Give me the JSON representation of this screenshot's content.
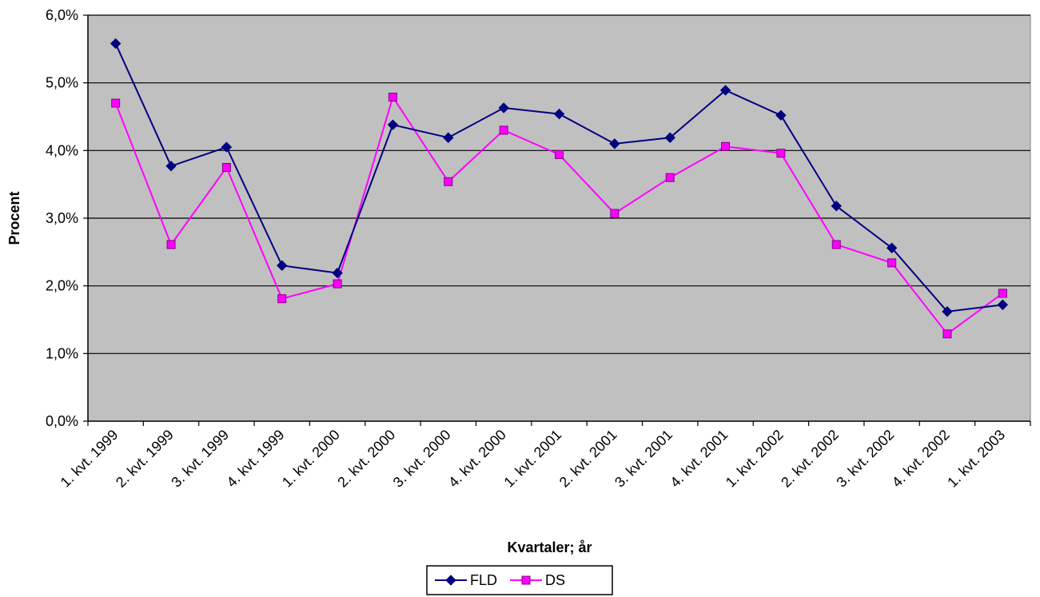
{
  "chart_data": {
    "type": "line",
    "title": "",
    "xlabel": "Kvartaler; år",
    "ylabel": "Procent",
    "ylim": [
      0,
      6
    ],
    "yticks": [
      "0,0%",
      "1,0%",
      "2,0%",
      "3,0%",
      "4,0%",
      "5,0%",
      "6,0%"
    ],
    "ytick_values": [
      0,
      1,
      2,
      3,
      4,
      5,
      6
    ],
    "grid": "horizontal",
    "plot_background": "#C0C0C0",
    "legend_position": "bottom",
    "categories": [
      "1. kvt. 1999",
      "2. kvt. 1999",
      "3. kvt. 1999",
      "4. kvt. 1999",
      "1. kvt. 2000",
      "2. kvt. 2000",
      "3. kvt. 2000",
      "4. kvt. 2000",
      "1. kvt. 2001",
      "2. kvt. 2001",
      "3. kvt. 2001",
      "4. kvt. 2001",
      "1. kvt. 2002",
      "2. kvt. 2002",
      "3. kvt. 2002",
      "4. kvt. 2002",
      "1. kvt. 2003"
    ],
    "series": [
      {
        "name": "FLD",
        "color": "#000080",
        "marker": "diamond",
        "values": [
          5.58,
          3.77,
          4.05,
          2.3,
          2.19,
          4.38,
          4.19,
          4.63,
          4.54,
          4.1,
          4.19,
          4.89,
          4.52,
          3.18,
          2.56,
          1.62,
          1.72
        ]
      },
      {
        "name": "DS",
        "color": "#FF00FF",
        "marker": "square",
        "values": [
          4.7,
          2.61,
          3.75,
          1.81,
          2.03,
          4.79,
          3.54,
          4.3,
          3.94,
          3.07,
          3.6,
          4.06,
          3.96,
          2.61,
          2.34,
          1.29,
          1.89
        ]
      }
    ]
  }
}
